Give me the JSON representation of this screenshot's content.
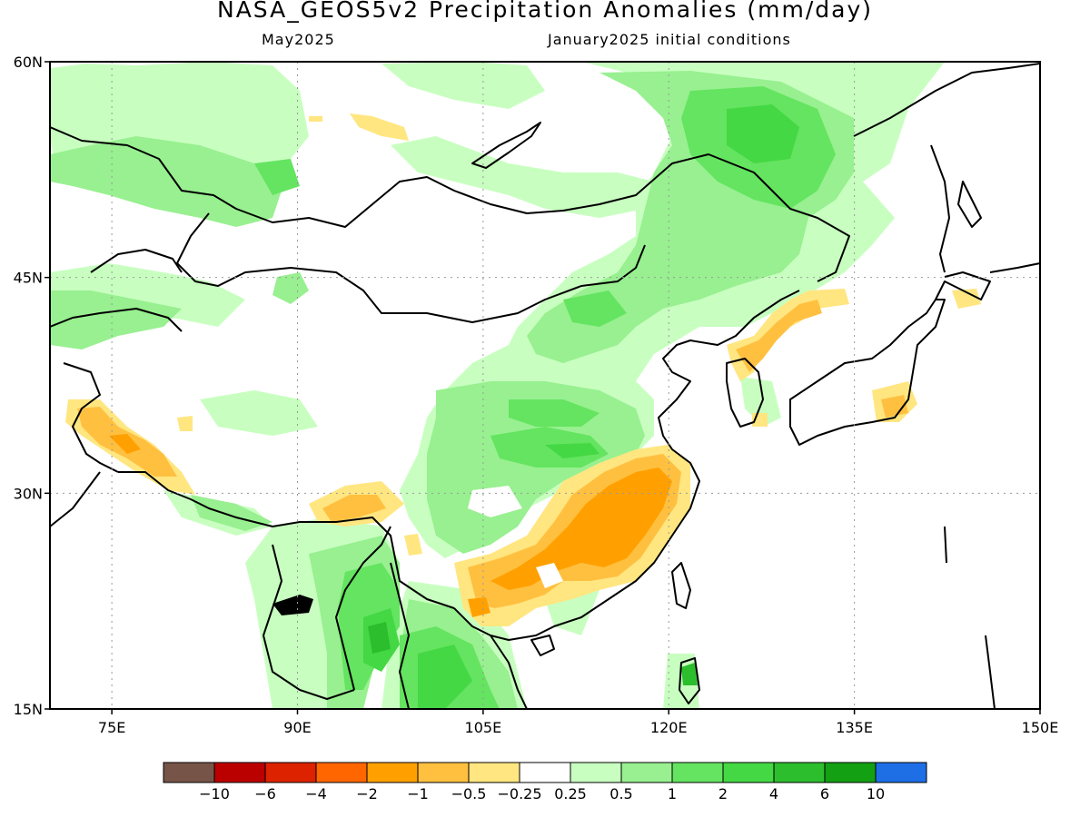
{
  "title": "NASA_GEOS5v2 Precipitation Anomalies (mm/day)",
  "subtitle_left": "May2025",
  "subtitle_right": "January2025 initial conditions",
  "map": {
    "lon_range": [
      70,
      150
    ],
    "lat_range": [
      15,
      60
    ],
    "lat_ticks": [
      {
        "value": 60,
        "label": "60N"
      },
      {
        "value": 45,
        "label": "45N"
      },
      {
        "value": 30,
        "label": "30N"
      },
      {
        "value": 15,
        "label": "15N"
      }
    ],
    "lon_ticks": [
      {
        "value": 75,
        "label": "75E"
      },
      {
        "value": 90,
        "label": "90E"
      },
      {
        "value": 105,
        "label": "105E"
      },
      {
        "value": 120,
        "label": "120E"
      },
      {
        "value": 135,
        "label": "135E"
      },
      {
        "value": 150,
        "label": "150E"
      }
    ],
    "gridlines": "dotted"
  },
  "colorbar": {
    "colors": [
      "#765548",
      "#bb0000",
      "#dd2200",
      "#ff6600",
      "#ffa000",
      "#ffc040",
      "#ffe680",
      "#ffffff",
      "#c8ffc0",
      "#98f090",
      "#64e460",
      "#44d844",
      "#2cbe2c",
      "#13a013",
      "#1e6ee6"
    ],
    "labels": [
      "−10",
      "−6",
      "−4",
      "−2",
      "−1",
      "−0.5",
      "−0.25",
      "0.25",
      "0.5",
      "1",
      "2",
      "4",
      "6",
      "10"
    ]
  }
}
